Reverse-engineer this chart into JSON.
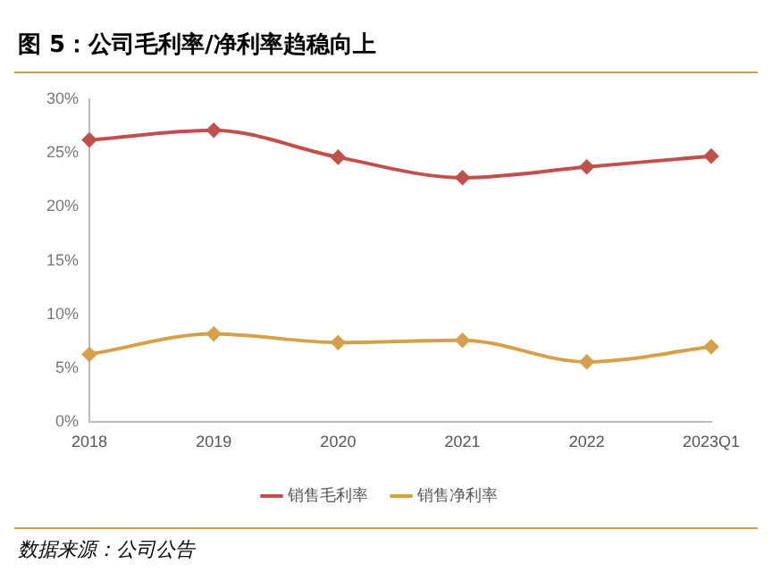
{
  "chart_data": {
    "type": "line",
    "title": "图 5：公司毛利率/净利率趋稳向上",
    "categories": [
      "2018",
      "2019",
      "2020",
      "2021",
      "2022",
      "2023Q1"
    ],
    "series": [
      {
        "name": "销售毛利率",
        "color": "#c0504d",
        "values": [
          26.2,
          27.1,
          24.6,
          22.7,
          23.7,
          24.7
        ]
      },
      {
        "name": "销售净利率",
        "color": "#d4a04a",
        "values": [
          6.3,
          8.2,
          7.4,
          7.6,
          5.6,
          7.0
        ]
      }
    ],
    "ylim": [
      0,
      30
    ],
    "yticks": [
      {
        "value": 0,
        "label": "0%"
      },
      {
        "value": 5,
        "label": "5%"
      },
      {
        "value": 10,
        "label": "10%"
      },
      {
        "value": 15,
        "label": "15%"
      },
      {
        "value": 20,
        "label": "20%"
      },
      {
        "value": 25,
        "label": "25%"
      },
      {
        "value": 30,
        "label": "30%"
      }
    ],
    "grid": false,
    "legend": "bottom",
    "marker": "diamond",
    "line_style": "solid",
    "annotations": [
      "数据来源：公司公告"
    ]
  }
}
